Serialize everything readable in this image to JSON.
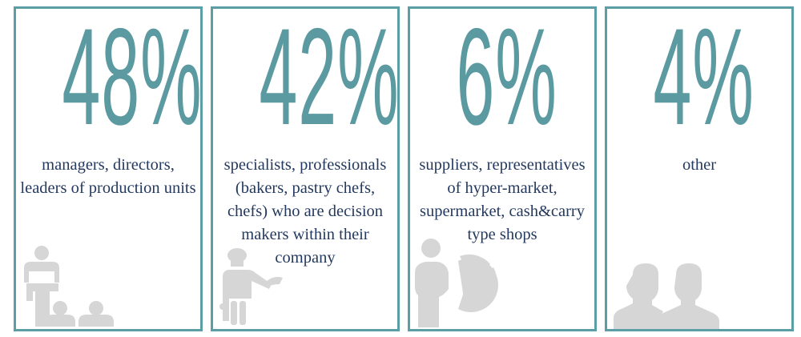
{
  "colors": {
    "accent": "#5b9ea6",
    "text": "#24395e",
    "icon": "#d6d6d6"
  },
  "cards": [
    {
      "value": "48%",
      "description": "managers, directors, leaders of production units",
      "icon": "presenter-audience-icon"
    },
    {
      "value": "42%",
      "description": "specialists, professionals (bakers, pastry chefs, chefs) who are decision makers within their company",
      "icon": "chef-icon"
    },
    {
      "value": "6%",
      "description": "suppliers, representatives of hyper-market, supermarket, cash&carry type shops",
      "icon": "businessman-pie-chart-icon"
    },
    {
      "value": "4%",
      "description": "other",
      "icon": "two-people-icon"
    }
  ]
}
